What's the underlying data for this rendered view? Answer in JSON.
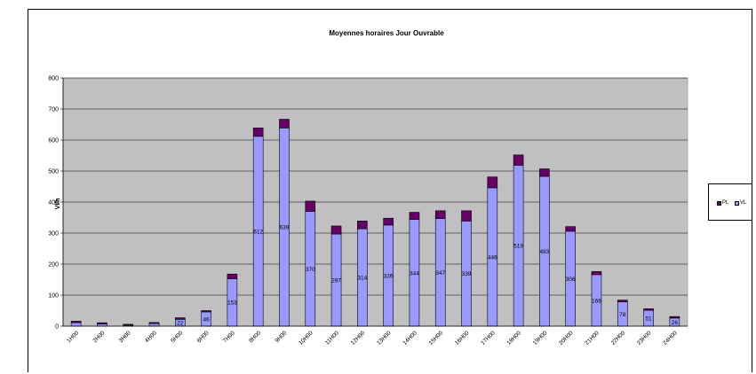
{
  "chart_data": {
    "type": "bar",
    "stacked": true,
    "title": "Moyennes horaires Jour Ouvrable",
    "ylabel": "Vl/h",
    "xlabel": "",
    "ylim": [
      0,
      800
    ],
    "yticks": [
      0,
      100,
      200,
      300,
      400,
      500,
      600,
      700,
      800
    ],
    "grid": true,
    "legend_position": "right",
    "categories": [
      "1H00",
      "2H00",
      "3H00",
      "4H00",
      "5H00",
      "6H00",
      "7H00",
      "8H00",
      "9H00",
      "10H00",
      "11H00",
      "12H00",
      "13H00",
      "14H00",
      "15H00",
      "16H00",
      "17H00",
      "18H00",
      "19H00",
      "20H00",
      "21H00",
      "22H00",
      "23H00",
      "24H00"
    ],
    "series": [
      {
        "name": "VL",
        "color": "#9999ff",
        "values": [
          11,
          7,
          3,
          8,
          22,
          46,
          153,
          612,
          639,
          370,
          297,
          314,
          326,
          344,
          347,
          339,
          446,
          519,
          483,
          306,
          166,
          78,
          51,
          26
        ],
        "labels": [
          "",
          "",
          "",
          "",
          "22",
          "46",
          "153",
          "612",
          "639",
          "370",
          "297",
          "314",
          "326",
          "344",
          "347",
          "339",
          "446",
          "519",
          "483",
          "306",
          "166",
          "78",
          "51",
          "26"
        ]
      },
      {
        "name": "PL",
        "color": "#660066",
        "values": [
          5,
          4,
          3,
          4,
          5,
          4,
          15,
          27,
          28,
          33,
          26,
          25,
          22,
          23,
          25,
          33,
          35,
          33,
          24,
          15,
          10,
          6,
          5,
          5
        ]
      }
    ],
    "legend": [
      "PL",
      "VL"
    ]
  }
}
